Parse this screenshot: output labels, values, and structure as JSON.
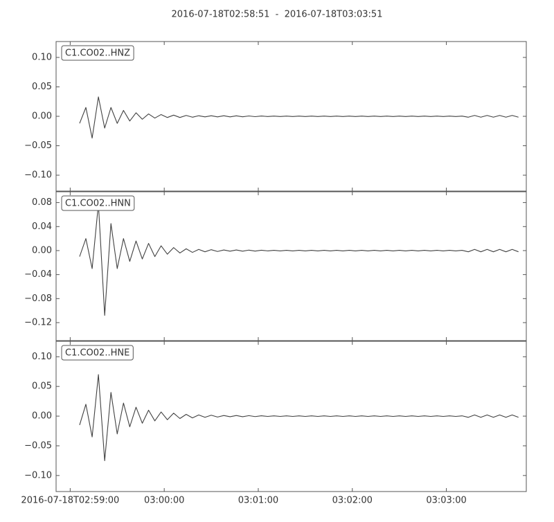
{
  "chart_data": {
    "type": "line",
    "title": "2016-07-18T02:58:51  -  2016-07-18T03:03:51",
    "xlim": [
      "2016-07-18T02:58:51",
      "2016-07-18T03:03:51"
    ],
    "xticks": [
      {
        "value": "2016-07-18T02:59:00",
        "label": "2016-07-18T02:59:00"
      },
      {
        "value": "2016-07-18T03:00:00",
        "label": "03:00:00"
      },
      {
        "value": "2016-07-18T03:01:00",
        "label": "03:01:00"
      },
      {
        "value": "2016-07-18T03:02:00",
        "label": "03:02:00"
      },
      {
        "value": "2016-07-18T03:03:00",
        "label": "03:03:00"
      }
    ],
    "x": [
      "2016-07-18T02:59:06",
      "2016-07-18T02:59:10",
      "2016-07-18T02:59:14",
      "2016-07-18T02:59:18",
      "2016-07-18T02:59:22",
      "2016-07-18T02:59:26",
      "2016-07-18T02:59:30",
      "2016-07-18T02:59:34",
      "2016-07-18T02:59:38",
      "2016-07-18T02:59:42",
      "2016-07-18T02:59:46",
      "2016-07-18T02:59:50",
      "2016-07-18T02:59:54",
      "2016-07-18T02:59:58",
      "2016-07-18T03:00:02",
      "2016-07-18T03:00:06",
      "2016-07-18T03:00:10",
      "2016-07-18T03:00:14",
      "2016-07-18T03:00:18",
      "2016-07-18T03:00:22",
      "2016-07-18T03:00:26",
      "2016-07-18T03:00:30",
      "2016-07-18T03:00:34",
      "2016-07-18T03:00:38",
      "2016-07-18T03:00:42",
      "2016-07-18T03:00:46",
      "2016-07-18T03:00:50",
      "2016-07-18T03:00:54",
      "2016-07-18T03:00:58",
      "2016-07-18T03:01:02",
      "2016-07-18T03:01:06",
      "2016-07-18T03:01:10",
      "2016-07-18T03:01:14",
      "2016-07-18T03:01:18",
      "2016-07-18T03:01:22",
      "2016-07-18T03:01:26",
      "2016-07-18T03:01:30",
      "2016-07-18T03:01:34",
      "2016-07-18T03:01:38",
      "2016-07-18T03:01:42",
      "2016-07-18T03:01:46",
      "2016-07-18T03:01:50",
      "2016-07-18T03:01:54",
      "2016-07-18T03:01:58",
      "2016-07-18T03:02:02",
      "2016-07-18T03:02:06",
      "2016-07-18T03:02:10",
      "2016-07-18T03:02:14",
      "2016-07-18T03:02:18",
      "2016-07-18T03:02:22",
      "2016-07-18T03:02:26",
      "2016-07-18T03:02:30",
      "2016-07-18T03:02:34",
      "2016-07-18T03:02:38",
      "2016-07-18T03:02:42",
      "2016-07-18T03:02:46",
      "2016-07-18T03:02:50",
      "2016-07-18T03:02:54",
      "2016-07-18T03:02:58",
      "2016-07-18T03:03:02",
      "2016-07-18T03:03:06",
      "2016-07-18T03:03:10",
      "2016-07-18T03:03:14",
      "2016-07-18T03:03:18",
      "2016-07-18T03:03:22",
      "2016-07-18T03:03:26",
      "2016-07-18T03:03:30",
      "2016-07-18T03:03:34",
      "2016-07-18T03:03:38",
      "2016-07-18T03:03:42",
      "2016-07-18T03:03:46"
    ],
    "series": [
      {
        "name": "C1.CO02..HNZ",
        "color": "#404040",
        "ylim": [
          -0.127,
          0.127
        ],
        "yticks": [
          {
            "value": 0.1,
            "label": "0.10"
          },
          {
            "value": 0.05,
            "label": "0.05"
          },
          {
            "value": 0,
            "label": "0.00"
          },
          {
            "value": -0.05,
            "label": "−0.05"
          },
          {
            "value": -0.1,
            "label": "−0.10"
          }
        ],
        "values": [
          -0.012,
          0.015,
          -0.037,
          0.033,
          -0.02,
          0.015,
          -0.012,
          0.01,
          -0.008,
          0.006,
          -0.005,
          0.004,
          -0.003,
          0.003,
          -0.002,
          0.002,
          -0.002,
          0.0015,
          -0.0015,
          0.001,
          -0.001,
          0.001,
          -0.001,
          0.001,
          -0.001,
          0.0008,
          -0.0008,
          0.0006,
          -0.0006,
          0.0005,
          -0.0004,
          0.0004,
          -0.0004,
          0.0004,
          -0.0004,
          0.0004,
          -0.0004,
          0.0004,
          -0.0004,
          0.0004,
          -0.0004,
          0.0004,
          -0.0004,
          0.0004,
          -0.0004,
          0.0004,
          -0.0004,
          0.0004,
          -0.0004,
          0.0004,
          -0.0004,
          0.0004,
          -0.0004,
          0.0004,
          -0.0004,
          0.0004,
          -0.0004,
          0.0004,
          -0.0004,
          0.0004,
          -0.0004,
          0.0004,
          -0.0015,
          0.0015,
          -0.0015,
          0.0015,
          -0.0015,
          0.0015,
          -0.0015,
          0.0015,
          -0.0015
        ]
      },
      {
        "name": "C1.CO02..HNN",
        "color": "#404040",
        "ylim": [
          -0.15,
          0.098
        ],
        "yticks": [
          {
            "value": 0.08,
            "label": "0.08"
          },
          {
            "value": 0.04,
            "label": "0.04"
          },
          {
            "value": 0,
            "label": "0.00"
          },
          {
            "value": -0.04,
            "label": "−0.04"
          },
          {
            "value": -0.08,
            "label": "−0.08"
          },
          {
            "value": -0.12,
            "label": "−0.12"
          }
        ],
        "values": [
          -0.01,
          0.02,
          -0.03,
          0.078,
          -0.108,
          0.045,
          -0.03,
          0.02,
          -0.018,
          0.016,
          -0.014,
          0.012,
          -0.01,
          0.008,
          -0.006,
          0.005,
          -0.004,
          0.003,
          -0.003,
          0.002,
          -0.002,
          0.0015,
          -0.0015,
          0.001,
          -0.001,
          0.001,
          -0.001,
          0.0008,
          -0.0008,
          0.0006,
          -0.0005,
          0.0005,
          -0.0005,
          0.0005,
          -0.0005,
          0.0005,
          -0.0005,
          0.0005,
          -0.0005,
          0.0005,
          -0.0005,
          0.0005,
          -0.0005,
          0.0005,
          -0.0005,
          0.0005,
          -0.0005,
          0.0005,
          -0.0005,
          0.0005,
          -0.0005,
          0.0005,
          -0.0005,
          0.0005,
          -0.0005,
          0.0005,
          -0.0005,
          0.0005,
          -0.0005,
          0.0005,
          -0.0005,
          0.0005,
          -0.002,
          0.002,
          -0.002,
          0.002,
          -0.002,
          0.002,
          -0.002,
          0.002,
          -0.002
        ]
      },
      {
        "name": "C1.CO02..HNE",
        "color": "#404040",
        "ylim": [
          -0.127,
          0.126
        ],
        "yticks": [
          {
            "value": 0.1,
            "label": "0.10"
          },
          {
            "value": 0.05,
            "label": "0.05"
          },
          {
            "value": 0,
            "label": "0.00"
          },
          {
            "value": -0.05,
            "label": "−0.05"
          },
          {
            "value": -0.1,
            "label": "−0.10"
          }
        ],
        "values": [
          -0.015,
          0.02,
          -0.035,
          0.07,
          -0.075,
          0.04,
          -0.03,
          0.022,
          -0.018,
          0.015,
          -0.012,
          0.01,
          -0.008,
          0.007,
          -0.006,
          0.005,
          -0.004,
          0.003,
          -0.003,
          0.002,
          -0.002,
          0.0015,
          -0.0015,
          0.001,
          -0.001,
          0.001,
          -0.001,
          0.0008,
          -0.0008,
          0.0006,
          -0.0005,
          0.0005,
          -0.0005,
          0.0005,
          -0.0005,
          0.0005,
          -0.0005,
          0.0005,
          -0.0005,
          0.0005,
          -0.0005,
          0.0005,
          -0.0005,
          0.0005,
          -0.0005,
          0.0005,
          -0.0005,
          0.0005,
          -0.0005,
          0.0005,
          -0.0005,
          0.0005,
          -0.0005,
          0.0005,
          -0.0005,
          0.0005,
          -0.0005,
          0.0005,
          -0.0005,
          0.0005,
          -0.0005,
          0.0005,
          -0.002,
          0.002,
          -0.002,
          0.002,
          -0.002,
          0.002,
          -0.002,
          0.002,
          -0.002
        ]
      }
    ]
  }
}
